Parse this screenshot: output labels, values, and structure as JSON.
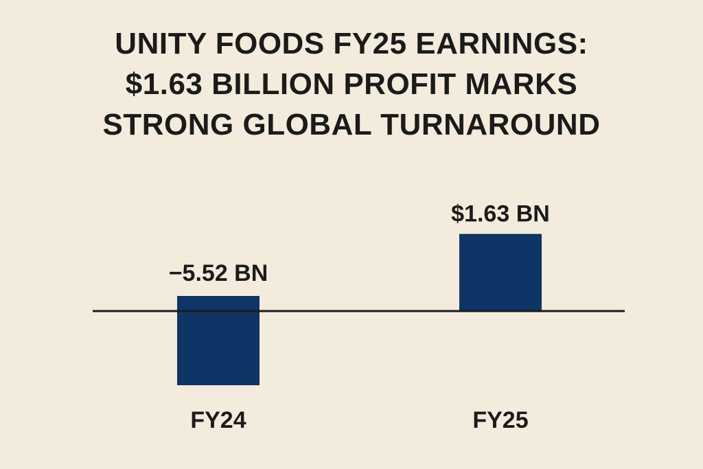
{
  "title_lines": [
    "UNITY FOODS FY25 EARNINGS:",
    "$1.63 BILLION PROFIT MARKS",
    "STRONG GLOBAL TURNAROUND"
  ],
  "colors": {
    "background": "#f3ecdc",
    "bar": "#0f3567",
    "text": "#1b1b1b"
  },
  "chart_data": {
    "type": "bar",
    "title": "UNITY FOODS FY25 EARNINGS: $1.63 BILLION PROFIT MARKS STRONG GLOBAL TURNAROUND",
    "categories": [
      "FY24",
      "FY25"
    ],
    "values": [
      -5.52,
      1.63
    ],
    "data_labels": [
      "−5.52 BN",
      "$1.63 BN"
    ],
    "xlabel": "",
    "ylabel": "",
    "grid": false,
    "legend": "none"
  }
}
